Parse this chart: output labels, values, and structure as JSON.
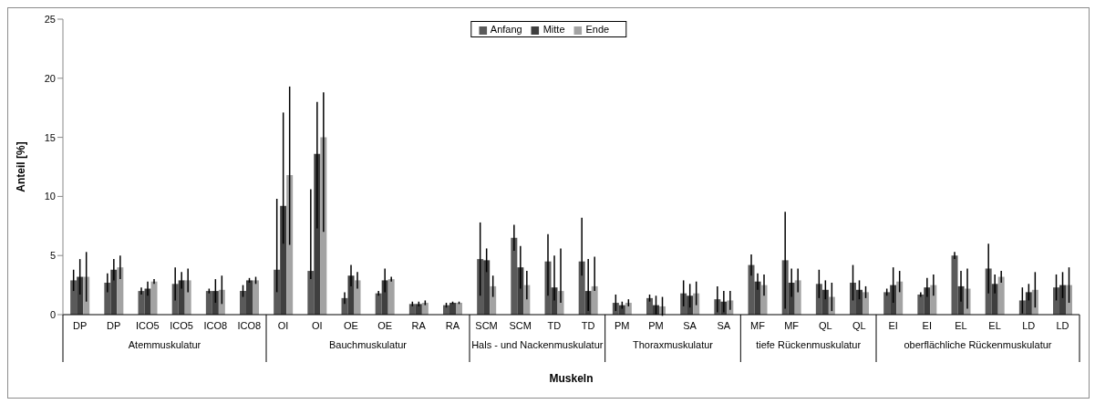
{
  "chart_data": {
    "type": "bar",
    "xlabel": "Muskeln",
    "ylabel": "Anteil [%]",
    "categories": [
      "DP",
      "DP",
      "ICO5",
      "ICO5",
      "ICO8",
      "ICO8",
      "OI",
      "OI",
      "OE",
      "OE",
      "RA",
      "RA",
      "SCM",
      "SCM",
      "TD",
      "TD",
      "PM",
      "PM",
      "SA",
      "SA",
      "MF",
      "MF",
      "QL",
      "QL",
      "EI",
      "EI",
      "EL",
      "EL",
      "LD",
      "LD"
    ],
    "series": [
      {
        "name": "Anfang",
        "color": "#5a5a5a",
        "values": [
          2.9,
          2.7,
          2.0,
          2.6,
          2.0,
          2.0,
          3.8,
          3.7,
          1.4,
          1.8,
          0.9,
          0.8,
          4.7,
          6.5,
          4.5,
          4.5,
          1.0,
          1.4,
          1.8,
          1.3,
          4.2,
          4.6,
          2.6,
          2.7,
          1.9,
          1.7,
          5.0,
          3.9,
          1.2,
          2.3
        ],
        "errors": [
          0.9,
          0.8,
          0.3,
          1.4,
          0.2,
          0.5,
          [
            1.9,
            9.8
          ],
          [
            3.0,
            10.6
          ],
          0.5,
          0.2,
          0.2,
          0.2,
          3.1,
          1.1,
          [
            1.6,
            6.8
          ],
          [
            3.3,
            8.2
          ],
          0.7,
          0.3,
          1.1,
          1.1,
          0.9,
          4.1,
          1.2,
          1.5,
          0.3,
          0.2,
          0.3,
          2.1,
          1.1,
          1.1
        ]
      },
      {
        "name": "Mitte",
        "color": "#3f3f3f",
        "values": [
          3.2,
          3.8,
          2.2,
          2.9,
          2.0,
          2.9,
          9.2,
          13.6,
          3.3,
          2.9,
          0.9,
          1.0,
          4.6,
          4.0,
          2.3,
          2.0,
          0.8,
          0.8,
          1.6,
          1.1,
          2.8,
          2.7,
          2.1,
          2.1,
          2.5,
          2.3,
          2.4,
          2.6,
          1.9,
          2.5
        ],
        "errors": [
          1.5,
          0.9,
          0.6,
          0.7,
          1.0,
          0.2,
          [
            6.0,
            17.1
          ],
          [
            7.3,
            18.0
          ],
          0.9,
          1.0,
          0.2,
          0.1,
          1.0,
          1.8,
          [
            1.2,
            5.0
          ],
          [
            0.3,
            4.7
          ],
          0.3,
          0.8,
          1.0,
          0.9,
          0.7,
          1.2,
          0.8,
          0.8,
          1.5,
          0.8,
          1.3,
          0.8,
          0.7,
          1.1
        ]
      },
      {
        "name": "Ende",
        "color": "#a3a3a3",
        "values": [
          3.2,
          4.0,
          2.8,
          2.9,
          2.1,
          2.9,
          11.8,
          15.0,
          2.9,
          3.0,
          1.0,
          1.0,
          2.4,
          2.5,
          2.0,
          2.4,
          1.0,
          0.7,
          1.8,
          1.2,
          2.5,
          2.9,
          1.5,
          1.9,
          2.8,
          2.5,
          2.2,
          3.2,
          2.1,
          2.5
        ],
        "errors": [
          2.1,
          1.0,
          0.2,
          1.0,
          1.2,
          0.3,
          [
            5.9,
            19.3
          ],
          [
            7.0,
            18.8
          ],
          0.7,
          0.2,
          0.2,
          0.1,
          0.9,
          1.2,
          [
            1.0,
            5.6
          ],
          [
            2.0,
            4.9
          ],
          0.3,
          0.8,
          1.0,
          0.8,
          0.9,
          1.0,
          1.2,
          0.5,
          0.9,
          0.9,
          1.7,
          0.5,
          1.5,
          1.5
        ]
      }
    ],
    "ylim": [
      0,
      25
    ],
    "yticks": [
      0,
      5,
      10,
      15,
      20,
      25
    ],
    "legend": "top",
    "annotations": [
      "Atemmuskulatur",
      "Bauchmuskulatur",
      "Hals - und Nackenmuskulatur",
      "Thoraxmuskulatur",
      "tiefe Rückenmuskulatur",
      "oberflächliche Rückenmuskulatur"
    ]
  }
}
